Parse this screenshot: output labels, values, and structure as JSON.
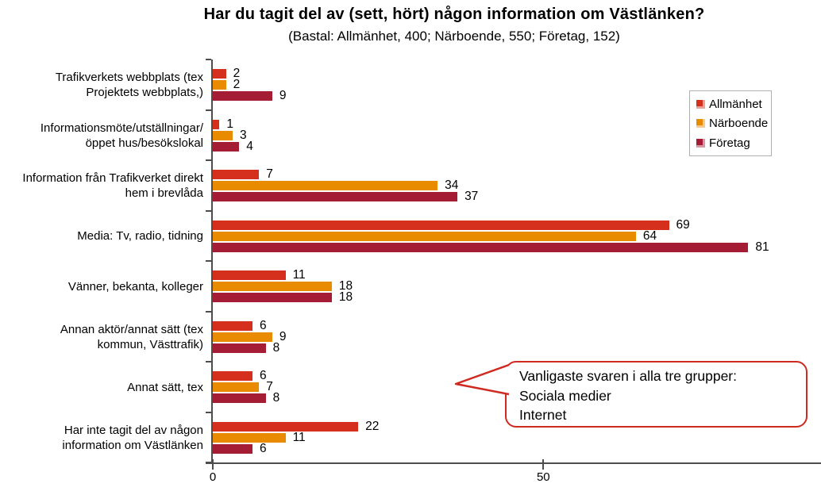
{
  "chart_data": {
    "type": "bar",
    "orientation": "horizontal",
    "title": "Har du tagit del av (sett, hört) någon information om Västlänken?",
    "subtitle": "(Bastal: Allmänhet, 400; Närboende, 550; Företag, 152)",
    "categories": [
      "Trafikverkets webbplats (tex Projektets webbplats,)",
      "Informationsmöte/utställningar/ öppet hus/besökslokal",
      "Information från Trafikverket direkt hem i brevlåda",
      "Media: Tv, radio, tidning",
      "Vänner, bekanta, kolleger",
      "Annan aktör/annat sätt (tex kommun, Västtrafik)",
      "Annat sätt, tex",
      "Har inte tagit del av någon information om Västlänken"
    ],
    "series": [
      {
        "name": "Allmänhet",
        "color": "#d5301d",
        "values": [
          2,
          1,
          7,
          69,
          11,
          6,
          6,
          22
        ]
      },
      {
        "name": "Närboende",
        "color": "#e88b01",
        "values": [
          2,
          3,
          34,
          64,
          18,
          9,
          7,
          11
        ]
      },
      {
        "name": "Företag",
        "color": "#a51d35",
        "values": [
          9,
          4,
          37,
          81,
          18,
          8,
          8,
          6
        ]
      }
    ],
    "xlabel": "",
    "ylabel": "",
    "x_ticks": [
      0,
      50
    ],
    "xlim": [
      0,
      92
    ],
    "grid": false,
    "legend_position": "upper-right",
    "bar_value_labels": true
  },
  "callout": {
    "lines": [
      "Vanligaste svaren i alla tre grupper:",
      "Sociala medier",
      "Internet"
    ],
    "border_color": "#cf2a20"
  },
  "colors": {
    "axis": "#4d4d4d",
    "legend_border": "#b0b0b0",
    "background": "#ffffff"
  }
}
